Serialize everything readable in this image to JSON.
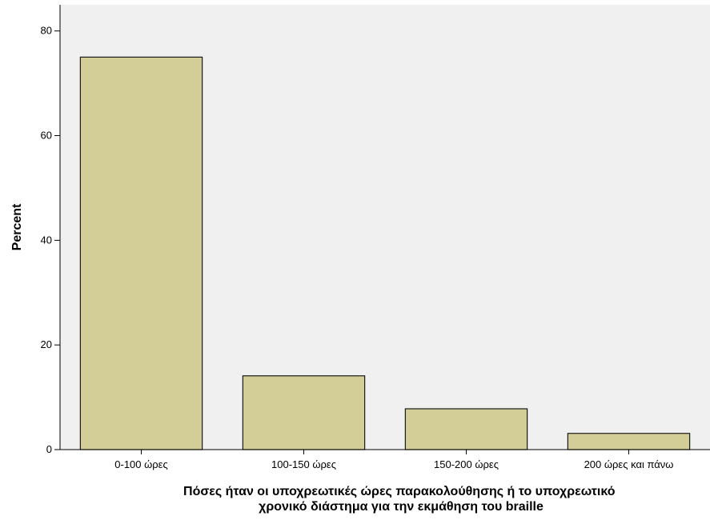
{
  "chart_data": {
    "type": "bar",
    "title": "",
    "xlabel_lines": [
      "Πόσες ήταν οι υποχρεωτικές ώρες παρακολούθησης ή το υποχρεωτικό",
      "χρονικό διάστημα για την εκμάθηση του braille"
    ],
    "ylabel": "Percent",
    "categories": [
      "0-100 ώρες",
      "100-150 ώρες",
      "150-200 ώρες",
      "200 ώρες και πάνω"
    ],
    "values": [
      75.0,
      14.1,
      7.8,
      3.1
    ],
    "ylim": [
      0,
      85
    ],
    "yticks": [
      0,
      20,
      40,
      60,
      80
    ],
    "grid": false,
    "legend": "none",
    "colors": {
      "bar_fill": "#D3CE97",
      "bar_stroke": "#1a1a1a",
      "plot_background": "#F0F0F0",
      "axis": "#000000"
    }
  }
}
